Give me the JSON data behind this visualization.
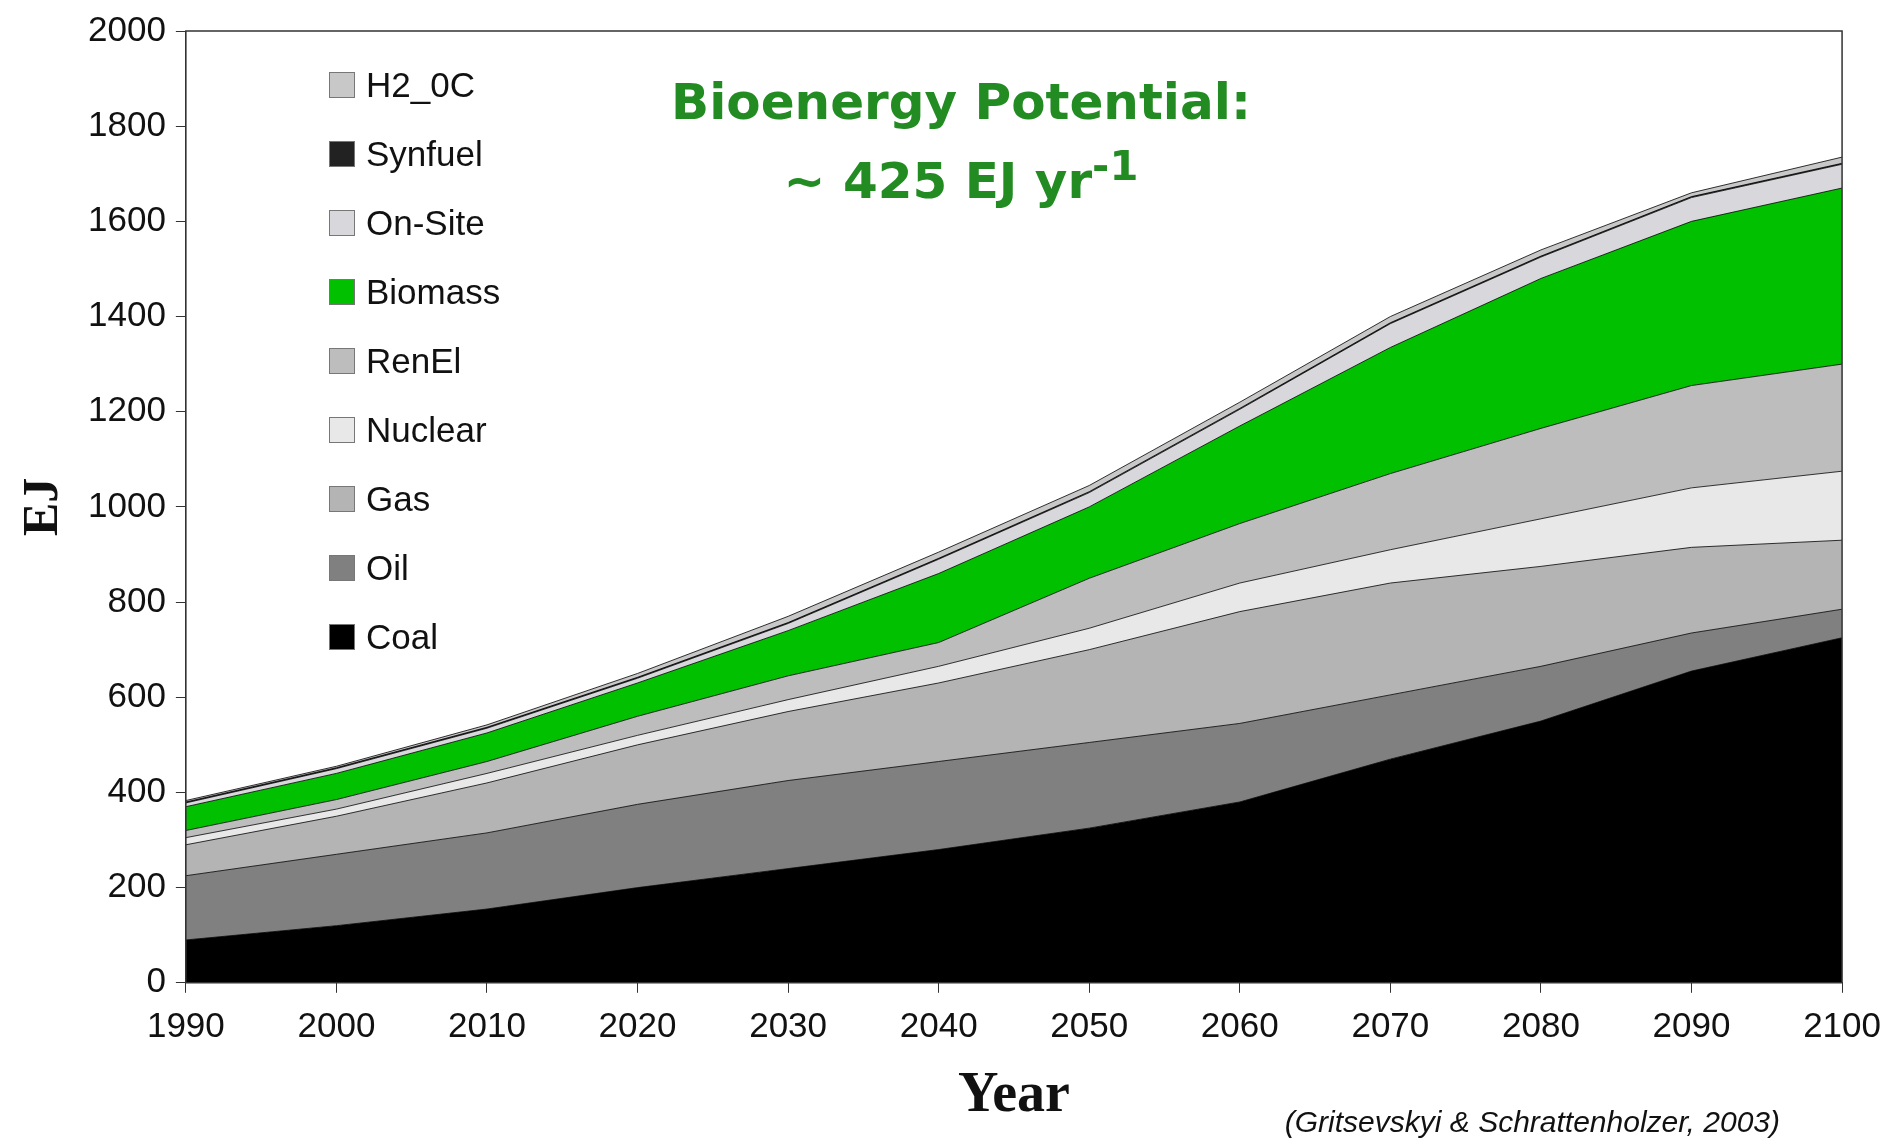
{
  "chart_data": {
    "type": "area",
    "stacked": true,
    "title": "Bioenergy Potential:",
    "subtitle": "~ 425 EJ yr$^{-1}$",
    "xlabel": "Year",
    "ylabel": "EJ",
    "annotations": [
      "(Gritsevskyi & Schrattenholzer, 2003)"
    ],
    "x": [
      1990,
      2000,
      2010,
      2020,
      2030,
      2040,
      2050,
      2060,
      2070,
      2080,
      2090,
      2100
    ],
    "xlim": [
      1990,
      2100
    ],
    "xticks": [
      1990,
      2000,
      2010,
      2020,
      2030,
      2040,
      2050,
      2060,
      2070,
      2080,
      2090,
      2100
    ],
    "ylim": [
      0,
      2000
    ],
    "yticks": [
      0,
      200,
      400,
      600,
      800,
      1000,
      1200,
      1400,
      1600,
      1800,
      2000
    ],
    "grid": false,
    "legend": "top left",
    "series": [
      {
        "name": "Coal",
        "color": "#000000",
        "values": [
          90,
          120,
          155,
          200,
          240,
          280,
          325,
          380,
          470,
          550,
          655,
          725
        ]
      },
      {
        "name": "Oil",
        "color": "#808080",
        "values": [
          135,
          150,
          160,
          175,
          185,
          185,
          180,
          165,
          135,
          115,
          80,
          60
        ]
      },
      {
        "name": "Gas",
        "color": "#b4b4b4",
        "values": [
          65,
          80,
          105,
          125,
          145,
          165,
          195,
          235,
          235,
          210,
          180,
          145
        ]
      },
      {
        "name": "Nuclear",
        "color": "#e8e8e8",
        "values": [
          15,
          15,
          20,
          20,
          25,
          35,
          45,
          60,
          70,
          100,
          125,
          145
        ]
      },
      {
        "name": "RenEl",
        "color": "#bdbdbd",
        "values": [
          15,
          20,
          25,
          40,
          50,
          50,
          105,
          125,
          160,
          190,
          215,
          225
        ]
      },
      {
        "name": "Biomass",
        "color": "#00c000",
        "values": [
          50,
          55,
          60,
          70,
          95,
          145,
          150,
          205,
          265,
          315,
          345,
          370
        ]
      },
      {
        "name": "On-Site",
        "color": "#d8d8dc",
        "values": [
          8,
          10,
          10,
          10,
          15,
          30,
          30,
          35,
          50,
          45,
          50,
          50
        ]
      },
      {
        "name": "Synfuel",
        "color": "#222222",
        "values": [
          2,
          2,
          2,
          2,
          2,
          2,
          2,
          2,
          2,
          2,
          2,
          2
        ]
      },
      {
        "name": "H2_0C",
        "color": "#c8c8c8",
        "values": [
          3,
          3,
          5,
          8,
          13,
          13,
          13,
          13,
          13,
          13,
          8,
          13
        ]
      }
    ]
  }
}
